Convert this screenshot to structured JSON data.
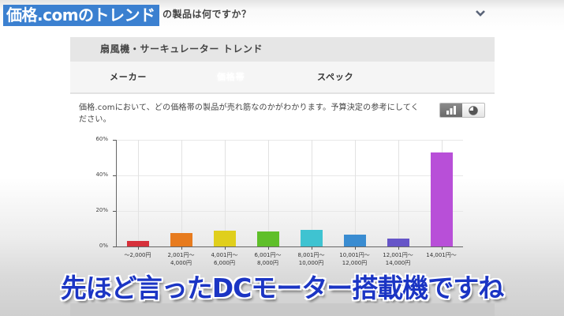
{
  "overlay": {
    "title": "価格.comのトレンド"
  },
  "top": {
    "question_partial": "の製品は何ですか？"
  },
  "panel": {
    "title": "扇風機・サーキュレーター トレンド",
    "tabs": [
      {
        "label": "メーカー",
        "active": false
      },
      {
        "label": "価格帯",
        "active": true
      },
      {
        "label": "スペック",
        "active": false
      }
    ]
  },
  "description": "価格.comにおいて、どの価格帯の製品が売れ筋なのかがわかります。予算決定の参考にしてください。",
  "view_toggle": {
    "options": [
      {
        "icon": "bar-chart-icon",
        "active": true
      },
      {
        "icon": "pie-chart-icon",
        "active": false
      }
    ]
  },
  "chart_data": {
    "type": "bar",
    "title": "",
    "xlabel": "",
    "ylabel": "",
    "ylim": [
      0,
      60
    ],
    "y_ticks": [
      "0%",
      "20%",
      "40%",
      "60%"
    ],
    "grid": true,
    "categories": [
      "〜2,000円",
      "2,001円〜\n4,000円",
      "4,001円〜\n6,000円",
      "6,001円〜\n8,000円",
      "8,001円〜\n10,000円",
      "10,001円〜\n12,000円",
      "12,001円〜\n14,000円",
      "14,001円〜"
    ],
    "category_lines": [
      [
        "〜2,000円",
        ""
      ],
      [
        "2,001円〜",
        "4,000円"
      ],
      [
        "4,001円〜",
        "6,000円"
      ],
      [
        "6,001円〜",
        "8,000円"
      ],
      [
        "8,001円〜",
        "10,000円"
      ],
      [
        "10,001円〜",
        "12,000円"
      ],
      [
        "12,001円〜",
        "14,000円"
      ],
      [
        "14,001円〜",
        ""
      ]
    ],
    "values": [
      3,
      7.5,
      9,
      8.5,
      9.5,
      6.5,
      4.5,
      53
    ],
    "colors": [
      "#d6303a",
      "#e77b1e",
      "#e0cf1c",
      "#5fbf2a",
      "#3fc3d1",
      "#3a8cd1",
      "#6655c8",
      "#b84fd8"
    ]
  },
  "subtitle": "先ほど言ったDCモーター搭載機ですね"
}
